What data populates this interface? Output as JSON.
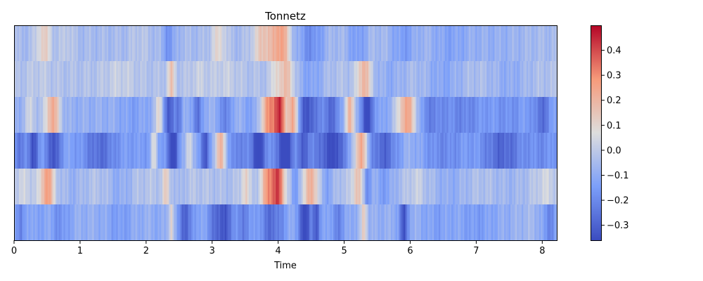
{
  "chart_data": {
    "type": "heatmap",
    "title": "Tonnetz",
    "xlabel": "Time",
    "ylabel": "",
    "xlim": [
      0,
      8.22
    ],
    "x_ticks": [
      "0",
      "1",
      "2",
      "3",
      "4",
      "5",
      "6",
      "7",
      "8"
    ],
    "rows": 6,
    "colorbar": {
      "vmin": -0.36,
      "vmax": 0.5,
      "ticks": [
        "0.4",
        "0.3",
        "0.2",
        "0.1",
        "0.0",
        "−0.1",
        "−0.2",
        "−0.3"
      ],
      "colormap": "coolwarm"
    },
    "rows_data": [
      {
        "base": -0.05,
        "events": [
          [
            0.45,
            0.12,
            0.17
          ],
          [
            0.8,
            0.1,
            0.06
          ],
          [
            1.9,
            0.15,
            0.04
          ],
          [
            2.35,
            0.1,
            -0.12
          ],
          [
            3.1,
            0.12,
            0.14
          ],
          [
            3.8,
            0.18,
            0.22
          ],
          [
            4.05,
            0.12,
            0.3
          ],
          [
            4.5,
            0.2,
            -0.14
          ],
          [
            5.2,
            0.15,
            -0.1
          ],
          [
            5.9,
            0.2,
            -0.1
          ],
          [
            6.6,
            0.3,
            -0.08
          ],
          [
            7.3,
            0.4,
            -0.04
          ]
        ]
      },
      {
        "base": -0.03,
        "events": [
          [
            0.4,
            0.2,
            0.03
          ],
          [
            1.6,
            0.25,
            0.05
          ],
          [
            2.38,
            0.06,
            0.18
          ],
          [
            2.8,
            0.15,
            0.05
          ],
          [
            3.2,
            0.2,
            0.05
          ],
          [
            4.0,
            0.1,
            0.15
          ],
          [
            4.15,
            0.08,
            0.2
          ],
          [
            4.5,
            0.2,
            -0.1
          ],
          [
            5.3,
            0.1,
            0.25
          ],
          [
            5.7,
            0.25,
            -0.07
          ],
          [
            6.5,
            0.3,
            -0.09
          ],
          [
            7.5,
            0.3,
            -0.07
          ]
        ]
      },
      {
        "base": -0.09,
        "events": [
          [
            0.25,
            0.1,
            0.12
          ],
          [
            0.58,
            0.12,
            0.32
          ],
          [
            1.8,
            0.2,
            -0.05
          ],
          [
            2.2,
            0.06,
            0.2
          ],
          [
            2.35,
            0.08,
            -0.25
          ],
          [
            2.5,
            0.05,
            -0.15
          ],
          [
            2.78,
            0.06,
            -0.2
          ],
          [
            3.2,
            0.08,
            -0.15
          ],
          [
            3.6,
            0.1,
            -0.05
          ],
          [
            3.85,
            0.12,
            0.35
          ],
          [
            4.02,
            0.1,
            0.5
          ],
          [
            4.22,
            0.08,
            0.35
          ],
          [
            4.45,
            0.15,
            -0.25
          ],
          [
            4.8,
            0.15,
            -0.18
          ],
          [
            5.08,
            0.07,
            0.3
          ],
          [
            5.35,
            0.08,
            -0.32
          ],
          [
            5.55,
            0.1,
            -0.05
          ],
          [
            5.95,
            0.15,
            0.34
          ],
          [
            6.3,
            0.2,
            -0.12
          ],
          [
            6.8,
            0.35,
            -0.12
          ],
          [
            7.5,
            0.3,
            -0.09
          ],
          [
            8.0,
            0.15,
            -0.17
          ]
        ]
      },
      {
        "base": -0.13,
        "events": [
          [
            0.1,
            0.1,
            -0.1
          ],
          [
            0.3,
            0.08,
            -0.2
          ],
          [
            0.6,
            0.1,
            -0.22
          ],
          [
            1.3,
            0.25,
            -0.14
          ],
          [
            1.9,
            0.2,
            -0.02
          ],
          [
            2.12,
            0.05,
            0.2
          ],
          [
            2.4,
            0.08,
            -0.28
          ],
          [
            2.65,
            0.06,
            0.2
          ],
          [
            2.9,
            0.06,
            -0.2
          ],
          [
            3.12,
            0.08,
            0.34
          ],
          [
            3.4,
            0.1,
            -0.1
          ],
          [
            3.7,
            0.12,
            -0.26
          ],
          [
            4.1,
            0.12,
            -0.3
          ],
          [
            4.4,
            0.1,
            -0.18
          ],
          [
            4.65,
            0.1,
            -0.12
          ],
          [
            4.85,
            0.15,
            -0.24
          ],
          [
            5.25,
            0.1,
            0.38
          ],
          [
            5.6,
            0.2,
            -0.16
          ],
          [
            6.0,
            0.2,
            0.05
          ],
          [
            6.5,
            0.3,
            -0.07
          ],
          [
            7.4,
            0.3,
            -0.16
          ],
          [
            8.0,
            0.2,
            -0.06
          ]
        ]
      },
      {
        "base": -0.02,
        "events": [
          [
            0.15,
            0.15,
            0.05
          ],
          [
            0.5,
            0.1,
            0.3
          ],
          [
            0.9,
            0.2,
            -0.06
          ],
          [
            1.6,
            0.2,
            -0.08
          ],
          [
            2.3,
            0.05,
            0.15
          ],
          [
            2.5,
            0.08,
            -0.05
          ],
          [
            3.2,
            0.2,
            -0.02
          ],
          [
            3.5,
            0.06,
            0.15
          ],
          [
            3.85,
            0.1,
            0.3
          ],
          [
            4.0,
            0.1,
            0.4
          ],
          [
            4.25,
            0.06,
            -0.15
          ],
          [
            4.5,
            0.1,
            0.25
          ],
          [
            4.75,
            0.12,
            -0.1
          ],
          [
            5.2,
            0.07,
            0.2
          ],
          [
            5.35,
            0.05,
            -0.15
          ],
          [
            5.6,
            0.2,
            -0.12
          ],
          [
            6.1,
            0.1,
            0.05
          ],
          [
            6.6,
            0.3,
            -0.08
          ],
          [
            7.5,
            0.3,
            -0.05
          ],
          [
            8.05,
            0.15,
            0.06
          ]
        ]
      },
      {
        "base": -0.09,
        "events": [
          [
            0.1,
            0.06,
            -0.15
          ],
          [
            0.35,
            0.1,
            -0.05
          ],
          [
            0.7,
            0.15,
            -0.09
          ],
          [
            1.6,
            0.2,
            -0.06
          ],
          [
            2.2,
            0.08,
            -0.02
          ],
          [
            2.38,
            0.04,
            0.2
          ],
          [
            2.6,
            0.12,
            -0.2
          ],
          [
            3.15,
            0.2,
            -0.24
          ],
          [
            3.5,
            0.08,
            -0.14
          ],
          [
            3.9,
            0.2,
            -0.18
          ],
          [
            4.4,
            0.08,
            -0.34
          ],
          [
            4.58,
            0.06,
            -0.25
          ],
          [
            4.9,
            0.12,
            -0.12
          ],
          [
            5.3,
            0.05,
            0.22
          ],
          [
            5.9,
            0.06,
            -0.28
          ],
          [
            6.4,
            0.2,
            -0.05
          ],
          [
            7.0,
            0.3,
            -0.06
          ],
          [
            7.8,
            0.2,
            0.03
          ],
          [
            8.1,
            0.1,
            -0.12
          ]
        ]
      }
    ]
  }
}
